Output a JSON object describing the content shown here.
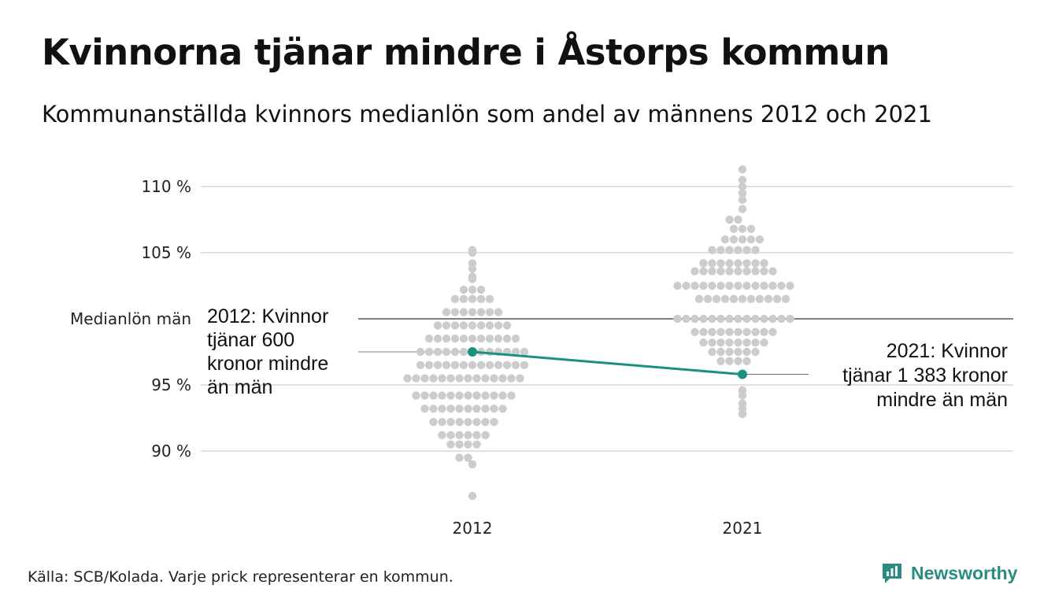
{
  "title": "Kvinnorna tjänar mindre i Åstorps kommun",
  "subtitle": "Kommunanställda kvinnors medianlön som andel av männens 2012 och 2021",
  "source": "Källa: SCB/Kolada. Varje prick representerar en kommun.",
  "brand": {
    "name": "Newsworthy",
    "icon": "bar-chart-logo-icon",
    "color": "#2a8c80"
  },
  "colors": {
    "dots": "#cccccc",
    "highlight": "#1a9080",
    "reference_line": "#333333",
    "grid": "#e0e0e0"
  },
  "chart_data": {
    "type": "scatter",
    "variant": "beeswarm",
    "categories": [
      "2012",
      "2021"
    ],
    "y_ticks": [
      {
        "value": 90,
        "label": "90 %"
      },
      {
        "value": 95,
        "label": "95 %"
      },
      {
        "value": 105,
        "label": "105 %"
      },
      {
        "value": 110,
        "label": "110 %"
      }
    ],
    "reference_line": {
      "value": 100,
      "label": "Medianlön män"
    },
    "ylim": [
      86,
      112
    ],
    "grid": true,
    "series": [
      {
        "category": "2012",
        "values": [
          97.5,
          97.5,
          97.5,
          97.5,
          97.5,
          97.5,
          97.5,
          97.5,
          97.5,
          97.5,
          97.5,
          97.5,
          97.5,
          96.5,
          96.5,
          96.5,
          96.5,
          96.5,
          96.5,
          96.5,
          96.5,
          96.5,
          96.5,
          96.5,
          96.5,
          96.5,
          95.5,
          95.5,
          95.5,
          95.5,
          95.5,
          95.5,
          95.5,
          95.5,
          95.5,
          95.5,
          95.5,
          95.5,
          95.5,
          95.5,
          94.2,
          94.2,
          94.2,
          94.2,
          94.2,
          94.2,
          94.2,
          94.2,
          94.2,
          94.2,
          94.2,
          94.2,
          93.2,
          93.2,
          93.2,
          93.2,
          93.2,
          93.2,
          93.2,
          93.2,
          93.2,
          93.2,
          92.2,
          92.2,
          92.2,
          92.2,
          92.2,
          92.2,
          92.2,
          92.2,
          91.2,
          91.2,
          91.2,
          91.2,
          91.2,
          91.2,
          90.5,
          90.5,
          90.5,
          90.5,
          89.5,
          89.5,
          89.0,
          99.5,
          99.5,
          99.5,
          99.5,
          99.5,
          99.5,
          99.5,
          99.5,
          99.5,
          98.5,
          98.5,
          98.5,
          98.5,
          98.5,
          98.5,
          98.5,
          98.5,
          98.5,
          98.5,
          98.5,
          100.5,
          100.5,
          100.5,
          100.5,
          100.5,
          100.5,
          100.5,
          101.5,
          101.5,
          101.5,
          101.5,
          101.5,
          102.2,
          102.2,
          102.2,
          103.0,
          103.2,
          103.8,
          104.2,
          105.0,
          105.2,
          86.6
        ]
      },
      {
        "category": "2021",
        "values": [
          102.5,
          102.5,
          102.5,
          102.5,
          102.5,
          102.5,
          102.5,
          102.5,
          102.5,
          102.5,
          102.5,
          102.5,
          102.5,
          102.5,
          100.0,
          100.0,
          100.0,
          100.0,
          100.0,
          100.0,
          100.0,
          100.0,
          100.0,
          100.0,
          100.0,
          100.0,
          100.0,
          100.0,
          101.5,
          101.5,
          101.5,
          101.5,
          101.5,
          101.5,
          101.5,
          101.5,
          101.5,
          101.5,
          101.5,
          103.6,
          103.6,
          103.6,
          103.6,
          103.6,
          103.6,
          103.6,
          103.6,
          103.6,
          103.6,
          99.0,
          99.0,
          99.0,
          99.0,
          99.0,
          99.0,
          99.0,
          99.0,
          99.0,
          99.0,
          104.2,
          104.2,
          104.2,
          104.2,
          104.2,
          104.2,
          104.2,
          104.2,
          98.2,
          98.2,
          98.2,
          98.2,
          98.2,
          98.2,
          98.2,
          98.2,
          105.2,
          105.2,
          105.2,
          105.2,
          105.2,
          105.2,
          97.5,
          97.5,
          97.5,
          97.5,
          97.5,
          97.5,
          106.0,
          106.0,
          106.0,
          106.0,
          106.0,
          96.8,
          96.8,
          96.8,
          96.8,
          106.8,
          106.8,
          106.8,
          107.5,
          107.5,
          108.3,
          109.0,
          109.5,
          110.0,
          110.5,
          111.3,
          94.6,
          94.2,
          93.6,
          93.2,
          92.8
        ]
      }
    ],
    "highlight": {
      "name": "Åstorps kommun",
      "points": [
        {
          "x": "2012",
          "y": 97.5
        },
        {
          "x": "2021",
          "y": 95.8
        }
      ],
      "annotations": [
        {
          "category": "2012",
          "lines": [
            "2012: Kvinnor",
            "tjänar 600",
            "kronor mindre",
            "än män"
          ]
        },
        {
          "category": "2021",
          "lines": [
            "2021: Kvinnor",
            "tjänar 1 383 kronor",
            "mindre än män"
          ]
        }
      ]
    }
  }
}
